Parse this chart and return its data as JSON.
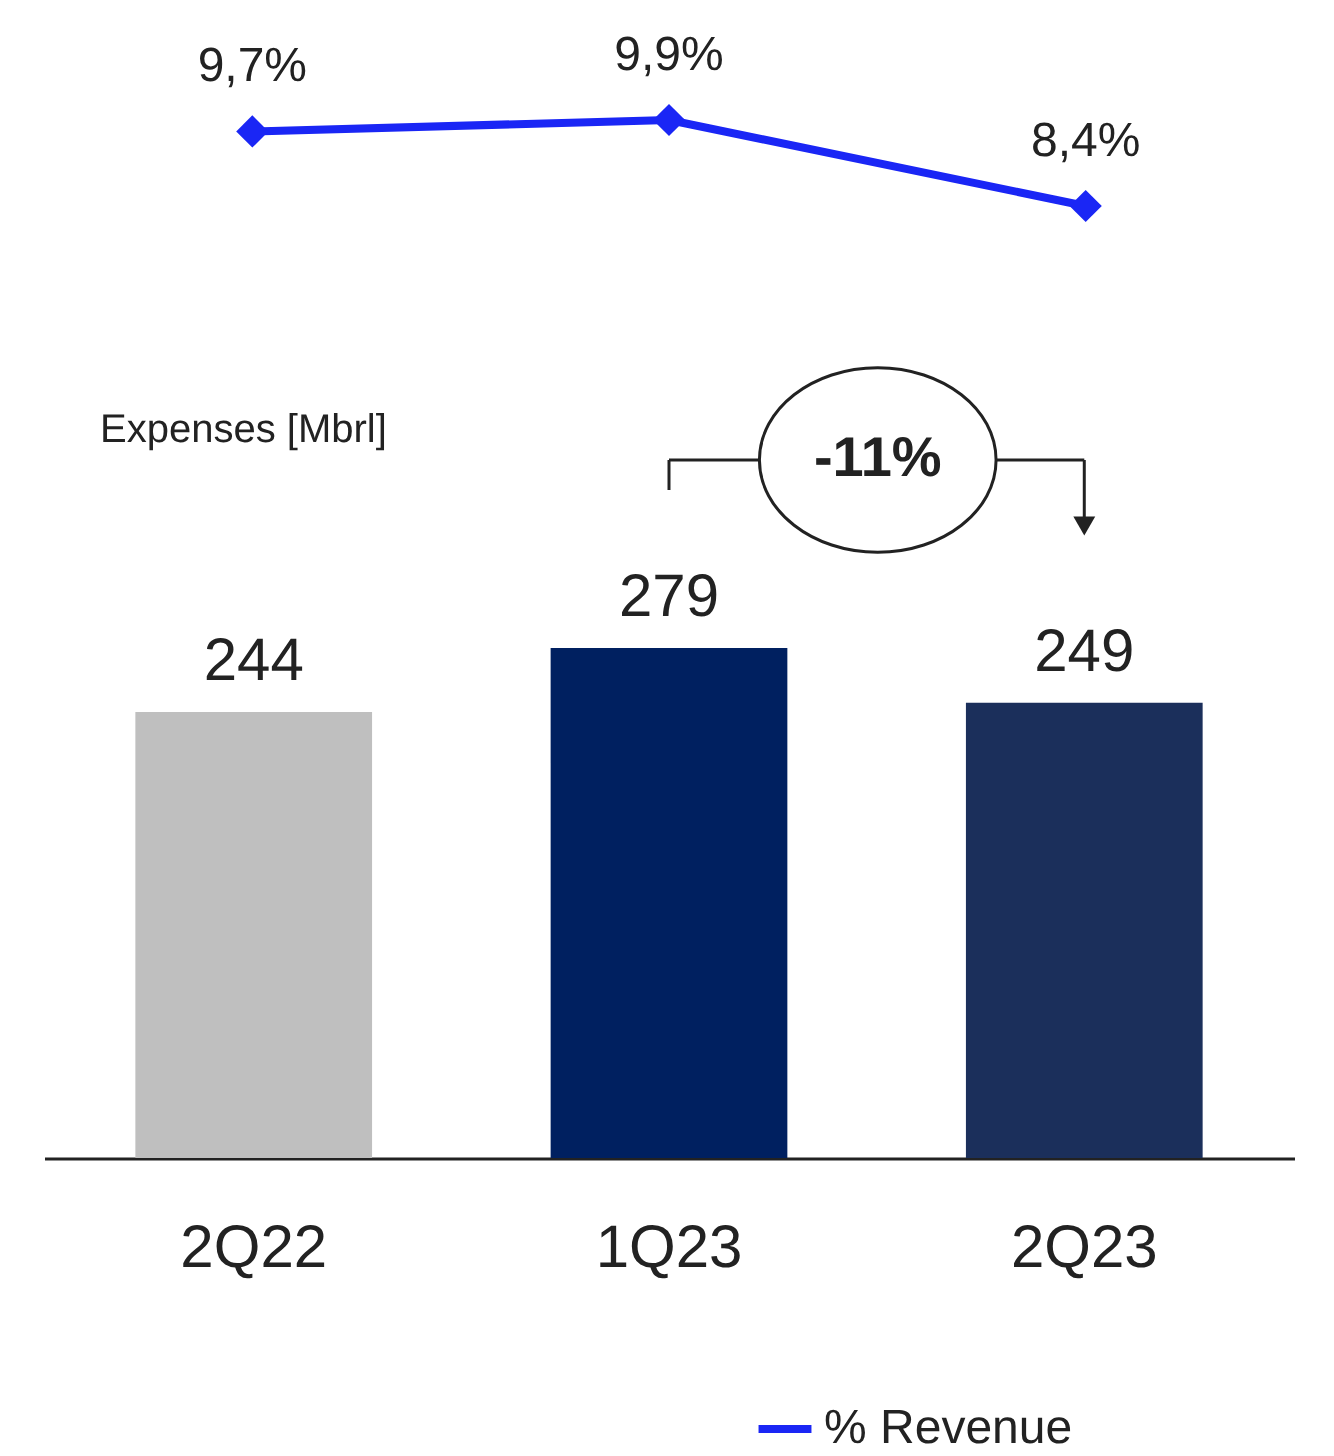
{
  "chart_data": [
    {
      "type": "line",
      "categories": [
        null,
        null,
        null
      ],
      "tick_labels": false,
      "legend": "bottom",
      "series": [
        {
          "name": "% Revenue",
          "color": "#1a26f5",
          "marker": "diamond",
          "values": [
            9.7,
            9.9,
            8.4
          ],
          "value_labels": [
            "9,7%",
            "9,9%",
            "8,4%"
          ]
        }
      ]
    },
    {
      "type": "bar",
      "categories": [
        "2Q22",
        "1Q23",
        "2Q23"
      ],
      "ylabel": "Expenses [Mbrl]",
      "data_labels": true,
      "series": [
        {
          "colors": [
            "#bfbfbf",
            "#002060",
            "#1b2f5b"
          ],
          "values": [
            244,
            279,
            249
          ]
        }
      ],
      "annotations": [
        "-11%"
      ]
    }
  ]
}
